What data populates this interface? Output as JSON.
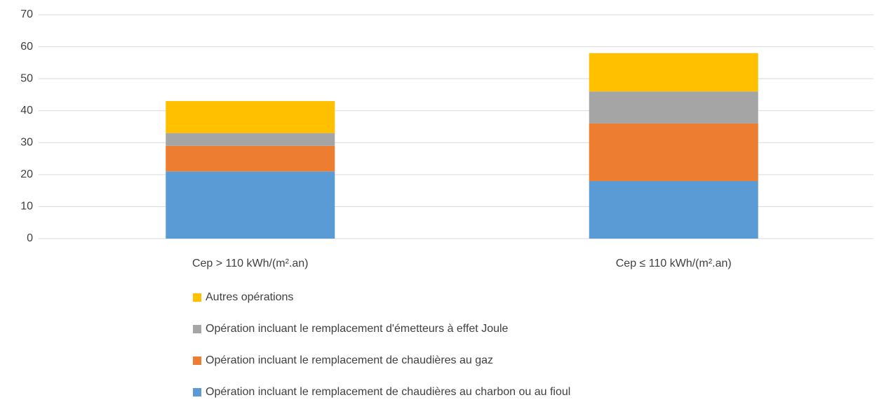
{
  "chart_data": {
    "type": "stacked_bar",
    "categories": [
      "Cep > 110 kWh/(m².an)",
      "Cep ≤ 110 kWh/(m².an)"
    ],
    "series": [
      {
        "name": "Opération incluant le remplacement de chaudières au charbon ou au fioul",
        "color": "#5b9bd5",
        "values": [
          21,
          18
        ]
      },
      {
        "name": "Opération incluant le remplacement de chaudières au gaz",
        "color": "#ed7d31",
        "values": [
          8,
          18
        ]
      },
      {
        "name": "Opération incluant le remplacement d'émetteurs à effet Joule",
        "color": "#a5a5a5",
        "values": [
          4,
          10
        ]
      },
      {
        "name": "Autres opérations",
        "color": "#ffc000",
        "values": [
          10,
          12
        ]
      }
    ],
    "ylim": [
      0,
      70
    ],
    "yticks": [
      0,
      10,
      20,
      30,
      40,
      50,
      60,
      70
    ],
    "grid": true,
    "legend": "bottom"
  }
}
